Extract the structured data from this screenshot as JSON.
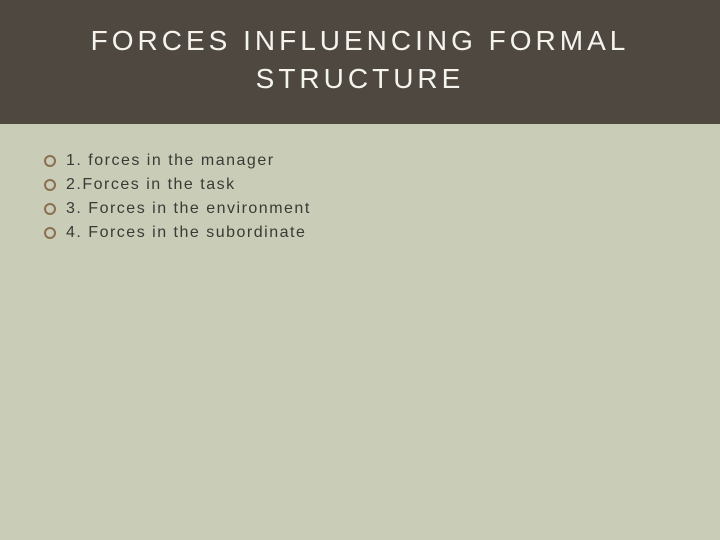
{
  "header": {
    "title_line1": "FORCES INFLUENCING  FORMAL",
    "title_line2": "STRUCTURE"
  },
  "content": {
    "items": [
      {
        "text": "1. forces in the manager"
      },
      {
        "text": "2.Forces in the task"
      },
      {
        "text": "3. Forces in the environment"
      },
      {
        "text": "4. Forces in the subordinate"
      }
    ]
  },
  "styling": {
    "background_color": "#c9ccb6",
    "header_background": "#4f4841",
    "title_color": "#f5f3ee",
    "title_fontsize": 28,
    "title_letter_spacing": 4,
    "bullet_border_color": "#8b6f52",
    "bullet_size": 12,
    "item_text_color": "#3a3a36",
    "item_fontsize": 16,
    "item_letter_spacing": 1.5
  }
}
